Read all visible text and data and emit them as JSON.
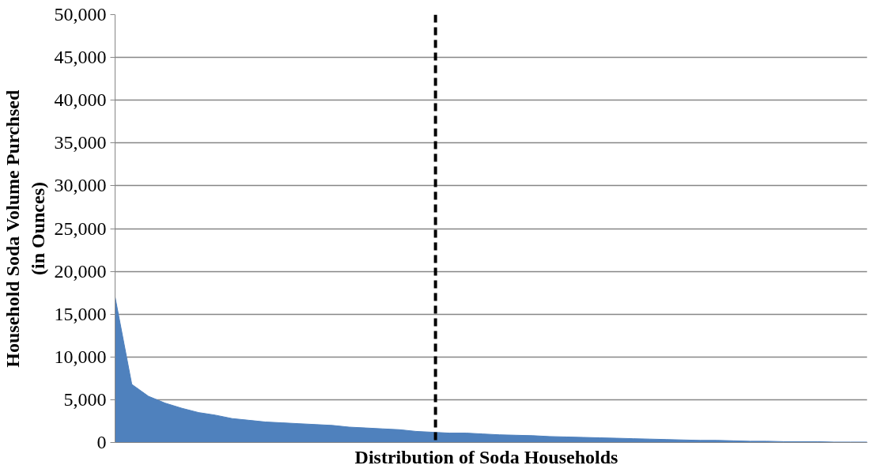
{
  "chart_data": {
    "type": "area",
    "xlabel": "Distribution of  Soda  Households",
    "ylabel": "Household Soda Volume Purchsed\n(in Ounces)",
    "categories": [
      null,
      null,
      null,
      null,
      null,
      null,
      null,
      null,
      null,
      null,
      null,
      null,
      null,
      null,
      null,
      null,
      null,
      null,
      null,
      null,
      null,
      null,
      null,
      null,
      null,
      null,
      null,
      null,
      null,
      null,
      null,
      null,
      null,
      null,
      null,
      null,
      null,
      null,
      null,
      null,
      null,
      null,
      null,
      null,
      null,
      null
    ],
    "series": [
      {
        "color": "#4f81bd",
        "values": [
          17000,
          6800,
          5400,
          4600,
          4000,
          3500,
          3200,
          2800,
          2600,
          2400,
          2300,
          2200,
          2100,
          2000,
          1800,
          1700,
          1600,
          1500,
          1300,
          1200,
          1100,
          1100,
          1000,
          900,
          850,
          800,
          700,
          650,
          600,
          550,
          500,
          450,
          400,
          350,
          300,
          250,
          250,
          200,
          150,
          150,
          100,
          100,
          100,
          50,
          50,
          50
        ]
      }
    ],
    "ylim": [
      0,
      50000
    ],
    "yticks": [
      {
        "value": 0,
        "label": "0"
      },
      {
        "value": 5000,
        "label": "5,000"
      },
      {
        "value": 10000,
        "label": "10,000"
      },
      {
        "value": 15000,
        "label": "15,000"
      },
      {
        "value": 20000,
        "label": "20,000"
      },
      {
        "value": 25000,
        "label": "25,000"
      },
      {
        "value": 30000,
        "label": "30,000"
      },
      {
        "value": 35000,
        "label": "35,000"
      },
      {
        "value": 40000,
        "label": "40,000"
      },
      {
        "value": 45000,
        "label": "45,000"
      },
      {
        "value": 50000,
        "label": "50,000"
      }
    ],
    "grid": "y"
  }
}
